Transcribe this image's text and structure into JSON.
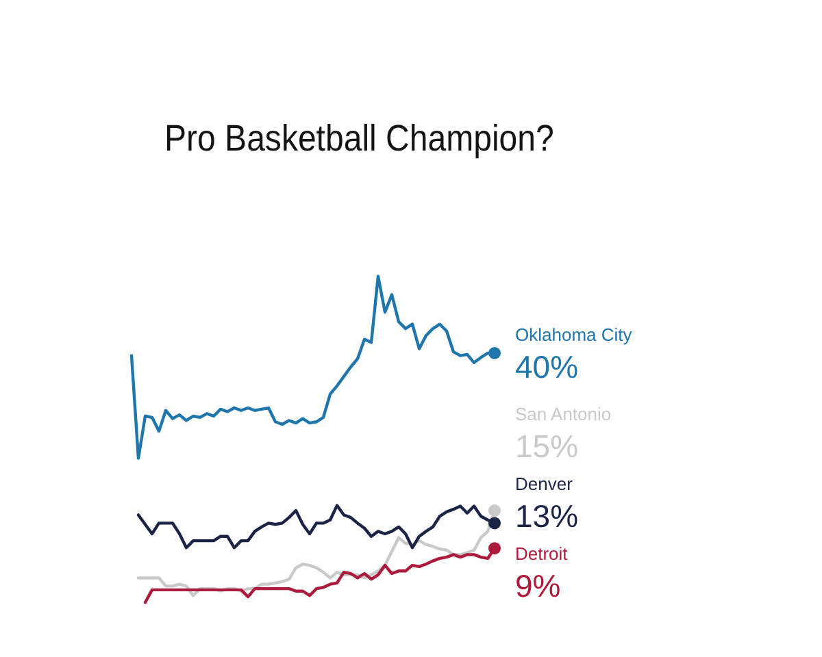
{
  "chart_data": {
    "type": "line",
    "title": "Pro Basketball Champion?",
    "categories": [
      null,
      null,
      null,
      null,
      null,
      null,
      null,
      null,
      null,
      null,
      null,
      null,
      null,
      null,
      null,
      null,
      null,
      null,
      null,
      null,
      null,
      null,
      null,
      null,
      null,
      null,
      null,
      null,
      null,
      null,
      null,
      null,
      null,
      null,
      null,
      null,
      null,
      null,
      null,
      null,
      null,
      null,
      null,
      null,
      null,
      null,
      null,
      null,
      null,
      null,
      null,
      null,
      null,
      null
    ],
    "legend": false,
    "line_style": "solid",
    "series": [
      {
        "name": "Oklahoma City",
        "color": "#1e76ad",
        "values": [
          39.6,
          23.3,
          30.0,
          29.8,
          27.6,
          30.9,
          29.6,
          30.2,
          29.3,
          30.0,
          29.8,
          30.4,
          30.0,
          31.1,
          30.7,
          31.3,
          30.9,
          31.3,
          30.9,
          31.1,
          31.3,
          29.1,
          28.7,
          29.3,
          28.9,
          29.6,
          28.9,
          29.1,
          29.8,
          33.5,
          34.8,
          36.3,
          37.8,
          39.1,
          42.2,
          41.7,
          52.2,
          46.5,
          49.3,
          45.0,
          43.9,
          44.6,
          40.7,
          42.8,
          43.9,
          44.6,
          43.5,
          40.2,
          39.6,
          39.8,
          38.5,
          39.3,
          40.0,
          40
        ],
        "value_labels": [
          null,
          null,
          null,
          null,
          null,
          null,
          null,
          null,
          null,
          null,
          null,
          null,
          null,
          null,
          null,
          null,
          null,
          null,
          null,
          null,
          null,
          null,
          null,
          null,
          null,
          null,
          null,
          null,
          null,
          null,
          null,
          null,
          null,
          null,
          null,
          null,
          null,
          null,
          null,
          null,
          null,
          null,
          null,
          null,
          null,
          null,
          null,
          null,
          null,
          null,
          null,
          null,
          null,
          "40%"
        ]
      },
      {
        "name": "San Antonio",
        "color": "#c9c9c9",
        "values": [
          null,
          4.3,
          4.3,
          4.3,
          4.3,
          3.0,
          3.0,
          3.3,
          3.0,
          1.5,
          2.6,
          2.6,
          2.6,
          2.2,
          2.6,
          2.6,
          2.2,
          2.6,
          2.6,
          3.3,
          3.3,
          3.5,
          3.7,
          4.1,
          5.9,
          6.5,
          6.3,
          5.9,
          5.2,
          4.3,
          5.2,
          4.8,
          4.8,
          4.8,
          4.3,
          4.8,
          5.4,
          6.3,
          8.5,
          10.7,
          9.8,
          9.6,
          10.2,
          9.6,
          9.3,
          8.9,
          8.7,
          8.0,
          8.0,
          8.3,
          8.7,
          10.7,
          11.7,
          15
        ],
        "value_labels": [
          null,
          null,
          null,
          null,
          null,
          null,
          null,
          null,
          null,
          null,
          null,
          null,
          null,
          null,
          null,
          null,
          null,
          null,
          null,
          null,
          null,
          null,
          null,
          null,
          null,
          null,
          null,
          null,
          null,
          null,
          null,
          null,
          null,
          null,
          null,
          null,
          null,
          null,
          null,
          null,
          null,
          null,
          null,
          null,
          null,
          null,
          null,
          null,
          null,
          null,
          null,
          null,
          null,
          "15%"
        ]
      },
      {
        "name": "Denver",
        "color": "#1b2447",
        "values": [
          null,
          14.3,
          12.8,
          11.3,
          13.0,
          13.0,
          13.0,
          11.3,
          9.1,
          10.2,
          10.2,
          10.2,
          10.2,
          10.9,
          10.9,
          9.1,
          10.2,
          10.2,
          11.7,
          12.4,
          13.0,
          12.8,
          13.0,
          13.9,
          15.0,
          12.8,
          11.3,
          13.0,
          13.0,
          13.5,
          15.8,
          14.3,
          13.9,
          13.0,
          12.2,
          10.9,
          11.7,
          11.3,
          11.7,
          12.4,
          11.3,
          9.1,
          10.9,
          11.7,
          12.4,
          14.1,
          14.8,
          15.2,
          15.7,
          14.6,
          15.7,
          14.1,
          13.5,
          13
        ],
        "value_labels": [
          null,
          null,
          null,
          null,
          null,
          null,
          null,
          null,
          null,
          null,
          null,
          null,
          null,
          null,
          null,
          null,
          null,
          null,
          null,
          null,
          null,
          null,
          null,
          null,
          null,
          null,
          null,
          null,
          null,
          null,
          null,
          null,
          null,
          null,
          null,
          null,
          null,
          null,
          null,
          null,
          null,
          null,
          null,
          null,
          null,
          null,
          null,
          null,
          null,
          null,
          null,
          null,
          null,
          "13%"
        ]
      },
      {
        "name": "Detroit",
        "color": "#ac1a3c",
        "values": [
          null,
          null,
          0.4,
          2.4,
          2.4,
          2.4,
          2.4,
          2.4,
          2.4,
          2.4,
          2.4,
          2.4,
          2.4,
          2.4,
          2.4,
          2.4,
          2.4,
          1.3,
          2.6,
          2.6,
          2.6,
          2.6,
          2.6,
          2.6,
          2.2,
          2.2,
          1.5,
          2.6,
          2.8,
          3.3,
          3.5,
          5.2,
          5.0,
          4.3,
          5.0,
          4.1,
          4.8,
          6.3,
          5.0,
          5.4,
          5.4,
          6.3,
          6.1,
          6.5,
          7.0,
          7.4,
          7.6,
          8.0,
          7.6,
          8.0,
          8.0,
          7.6,
          7.4,
          9
        ],
        "value_labels": [
          null,
          null,
          null,
          null,
          null,
          null,
          null,
          null,
          null,
          null,
          null,
          null,
          null,
          null,
          null,
          null,
          null,
          null,
          null,
          null,
          null,
          null,
          null,
          null,
          null,
          null,
          null,
          null,
          null,
          null,
          null,
          null,
          null,
          null,
          null,
          null,
          null,
          null,
          null,
          null,
          null,
          null,
          null,
          null,
          null,
          null,
          null,
          null,
          null,
          null,
          null,
          null,
          null,
          "9%"
        ]
      }
    ]
  }
}
